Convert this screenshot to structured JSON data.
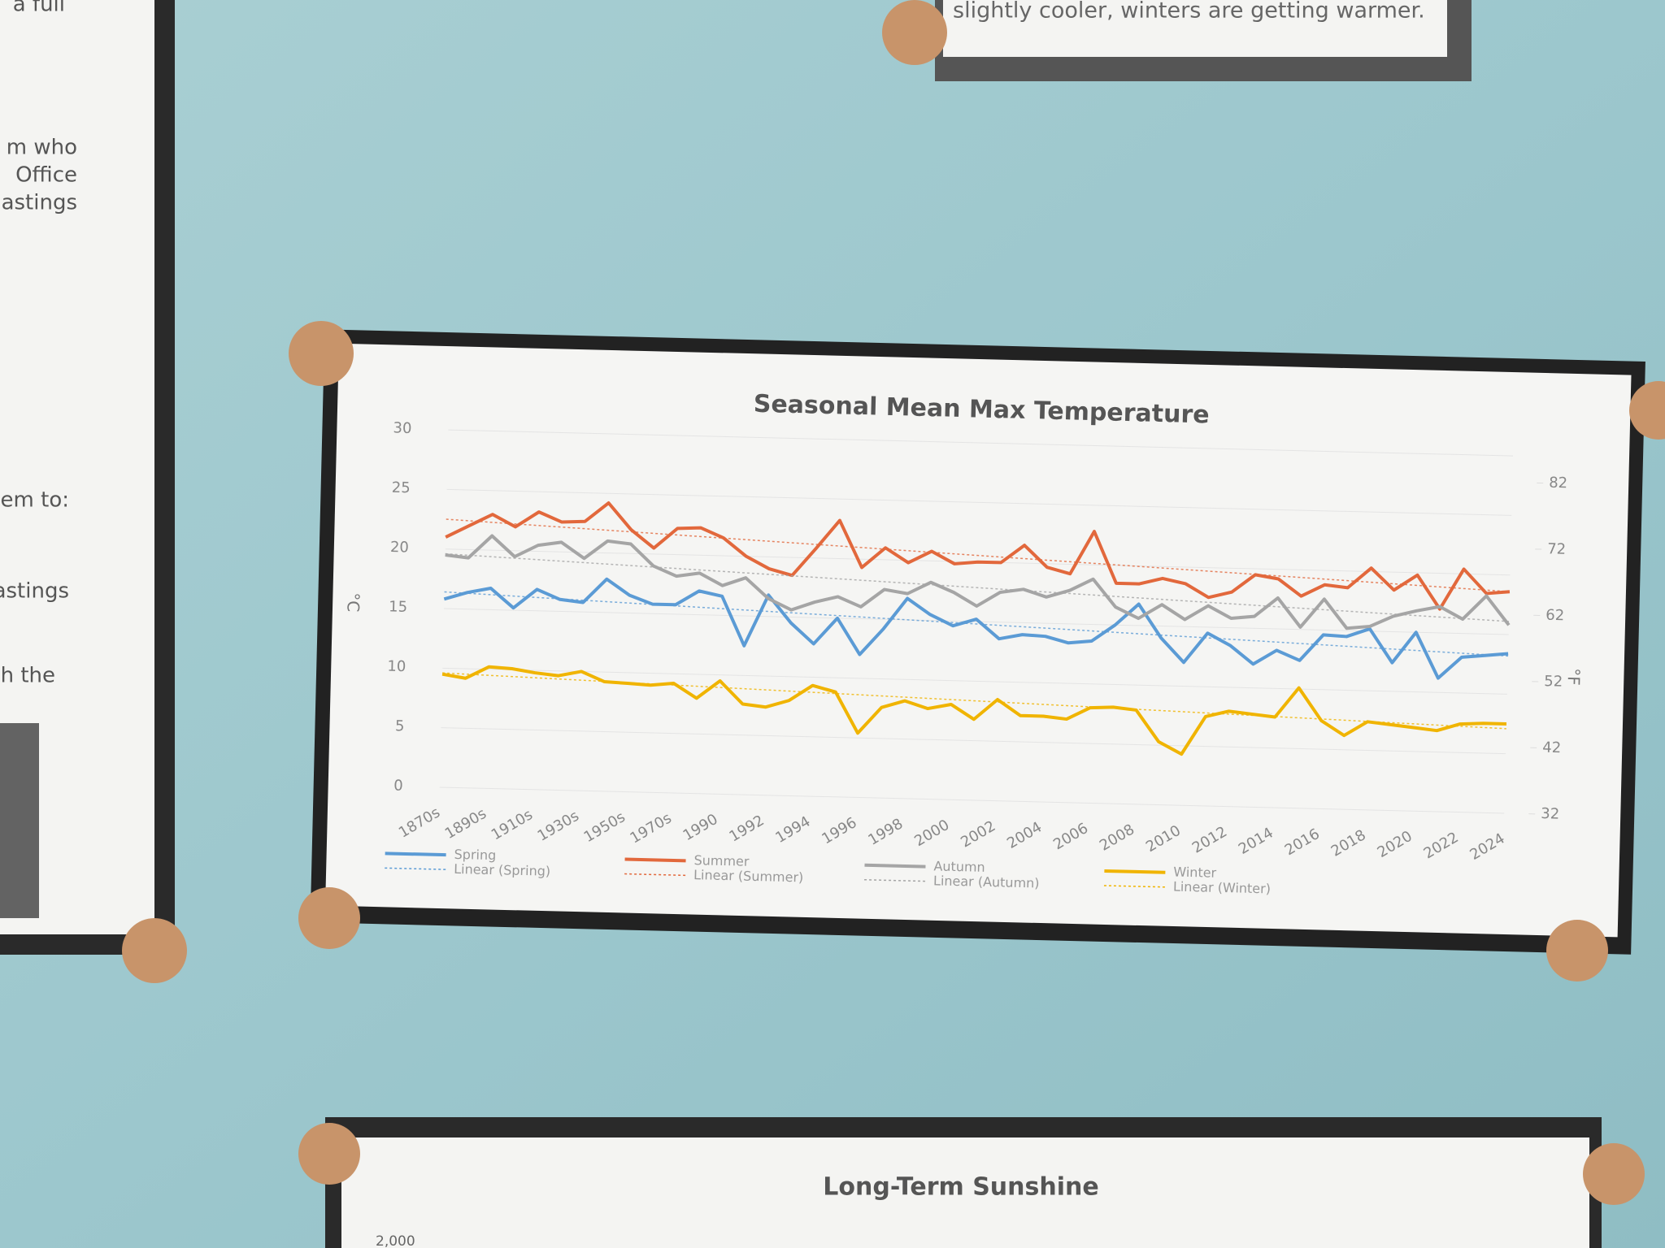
{
  "chart_data": {
    "type": "line",
    "title": "Seasonal Mean Max Temperature",
    "y_label": "°C",
    "y2_label": "°F",
    "categories": [
      "1870s",
      null,
      "1890s",
      null,
      "1910s",
      null,
      "1930s",
      null,
      "1950s",
      null,
      "1970s",
      null,
      "1990",
      null,
      "1992",
      null,
      "1994",
      null,
      "1996",
      null,
      "1998",
      null,
      "2000",
      null,
      "2002",
      null,
      "2004",
      null,
      "2006",
      null,
      "2008",
      null,
      "2010",
      null,
      "2012",
      null,
      "2014",
      null,
      "2016",
      null,
      "2018",
      null,
      "2020",
      null,
      "2022",
      null,
      "2024"
    ],
    "ylim": [
      0,
      30
    ],
    "yticks": [
      0,
      5,
      10,
      15,
      20,
      25,
      30
    ],
    "y2lim": [
      32,
      86
    ],
    "y2ticks": [
      32,
      42,
      52,
      62,
      72,
      82
    ],
    "grid": true,
    "legend": "bottom",
    "series": [
      {
        "name": "Spring",
        "color": "#5b9bd5",
        "values": [
          15.8,
          16.4,
          16.8,
          15.2,
          16.8,
          16,
          15.8,
          17.8,
          16.5,
          15.8,
          15.8,
          17,
          16.6,
          12.5,
          16.8,
          14.5,
          12.8,
          15,
          12,
          14.2,
          16.8,
          15.5,
          14.6,
          15.2,
          13.6,
          14,
          13.9,
          13.4,
          13.6,
          15,
          16.8,
          14,
          12,
          14.5,
          13.5,
          12,
          13.2,
          12.4,
          14.6,
          14.5,
          15.2,
          12.4,
          15,
          11.2,
          13,
          13.2,
          13.4
        ],
        "trend": {
          "name": "Linear (Spring)",
          "start": 16.4,
          "end": 13.2
        }
      },
      {
        "name": "Summer",
        "color": "#e2683c",
        "values": [
          21,
          22,
          23,
          22,
          23.3,
          22.5,
          22.6,
          24.2,
          22,
          20.5,
          22.2,
          22.3,
          21.5,
          20,
          19,
          18.5,
          20.8,
          23.2,
          19.3,
          21,
          19.8,
          20.8,
          19.8,
          20,
          20,
          21.5,
          19.7,
          19.2,
          22.8,
          18.5,
          18.5,
          19,
          18.6,
          17.5,
          18,
          19.5,
          19.2,
          17.8,
          18.8,
          18.6,
          20.3,
          18.5,
          19.8,
          17,
          20.4,
          18.4,
          18.6
        ],
        "trend": {
          "name": "Linear (Summer)",
          "start": 22.5,
          "end": 18.6
        }
      },
      {
        "name": "Autumn",
        "color": "#a5a5a5",
        "values": [
          19.5,
          19.3,
          21.2,
          19.5,
          20.5,
          20.8,
          19.5,
          21,
          20.8,
          19,
          18.2,
          18.5,
          17.5,
          18.2,
          16.5,
          15.6,
          16.3,
          16.8,
          16,
          17.5,
          17.2,
          18.2,
          17.4,
          16.3,
          17.5,
          17.8,
          17.2,
          17.8,
          18.8,
          16.5,
          15.6,
          16.8,
          15.6,
          16.8,
          15.8,
          16,
          17.6,
          15.2,
          17.6,
          15.2,
          15.4,
          16.3,
          16.8,
          17.2,
          16.2,
          18.2,
          15.8
        ],
        "trend": {
          "name": "Linear (Autumn)",
          "start": 19.6,
          "end": 16.1
        }
      },
      {
        "name": "Winter",
        "color": "#f0b400",
        "values": [
          9.5,
          9.2,
          10.2,
          10.1,
          9.8,
          9.6,
          10,
          9.2,
          9.1,
          9,
          9.2,
          8,
          9.5,
          7.6,
          7.4,
          8,
          9.3,
          8.8,
          5.4,
          7.6,
          8.2,
          7.6,
          8,
          6.8,
          8.5,
          7.2,
          7.2,
          7,
          8,
          8.1,
          7.9,
          5.3,
          4.3,
          7.5,
          8,
          7.8,
          7.6,
          10.1,
          7.4,
          6.2,
          7.4,
          7.2,
          7,
          6.8,
          7.4,
          7.5,
          7.5
        ],
        "trend": {
          "name": "Linear (Winter)",
          "start": 9.6,
          "end": 7.1
        }
      }
    ]
  },
  "notices": {
    "left_fragments": [
      "a full",
      "m who",
      "Office",
      "astings",
      "em to:",
      "astings",
      "h the"
    ],
    "top_note": "slightly cooler, winters are getting warmer.",
    "bottom_title": "Long-Term Sunshine",
    "bottom_tick": "2,000"
  }
}
